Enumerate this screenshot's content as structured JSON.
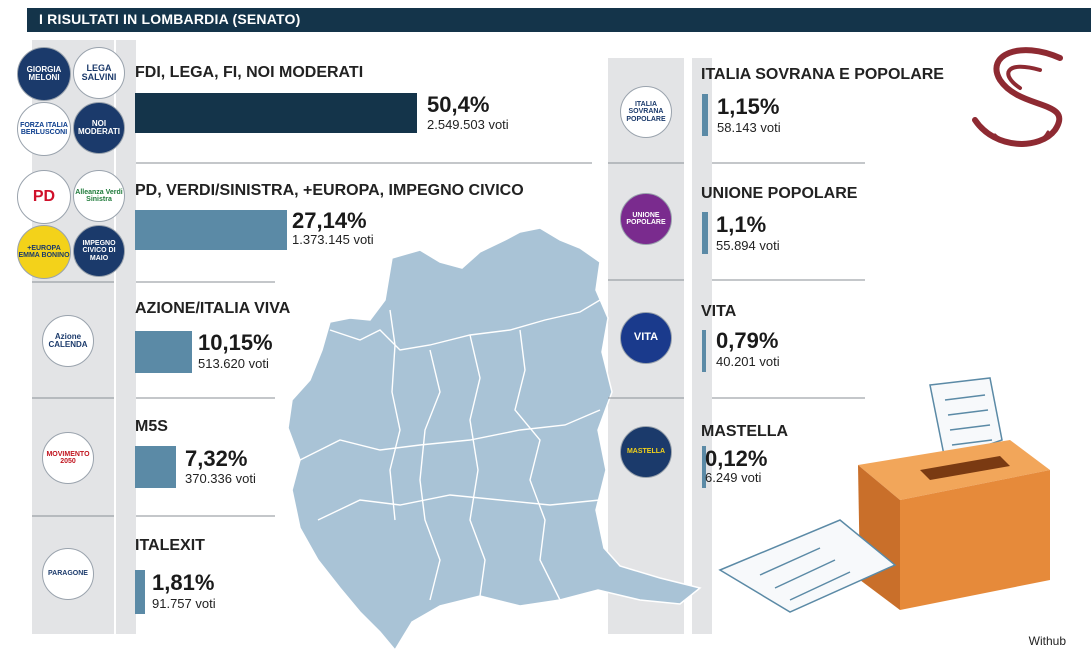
{
  "header": {
    "title": "I RISULTATI IN LOMBARDIA (SENATO)"
  },
  "colors": {
    "header": "#14344a",
    "bar_leader": "#14344a",
    "bar_other": "#5b8aa6",
    "map": "#a9c3d6",
    "emblem": "#8e2a32",
    "box": "#e68a3a"
  },
  "logos": {
    "fdi": "GIORGIA MELONI",
    "lega": "LEGA SALVINI",
    "fi": "FORZA ITALIA BERLUSCONI",
    "noi": "NOI MODERATI",
    "pd": "PD",
    "verdi": "Alleanza Verdi Sinistra",
    "europa": "+EUROPA EMMA BONINO",
    "impegno": "IMPEGNO CIVICO DI MAIO",
    "azione": "Azione CALENDA",
    "m5s": "MOVIMENTO 2050",
    "italexit": "PARAGONE",
    "isp": "ITALIA SOVRANA POPOLARE",
    "up": "UNIONE POPOLARE",
    "vita": "VITA",
    "mastella": "MASTELLA"
  },
  "credit": "Withub",
  "chart_data": {
    "type": "bar",
    "title": "I RISULTATI IN LOMBARDIA (SENATO)",
    "unit": "%",
    "series": [
      {
        "label": "FDI, LEGA, FI, NOI MODERATI",
        "value": 50.4,
        "value_text": "50,4%",
        "votes": "2.549.503 voti"
      },
      {
        "label": "PD, VERDI/SINISTRA, +EUROPA, IMPEGNO CIVICO",
        "value": 27.14,
        "value_text": "27,14%",
        "votes": "1.373.145 voti"
      },
      {
        "label": "AZIONE/ITALIA VIVA",
        "value": 10.15,
        "value_text": "10,15%",
        "votes": "513.620 voti"
      },
      {
        "label": "M5S",
        "value": 7.32,
        "value_text": "7,32%",
        "votes": "370.336 voti"
      },
      {
        "label": "ITALEXIT",
        "value": 1.81,
        "value_text": "1,81%",
        "votes": "91.757 voti"
      },
      {
        "label": "ITALIA SOVRANA E POPOLARE",
        "value": 1.15,
        "value_text": "1,15%",
        "votes": "58.143 voti"
      },
      {
        "label": "UNIONE POPOLARE",
        "value": 1.1,
        "value_text": "1,1%",
        "votes": "55.894 voti"
      },
      {
        "label": "VITA",
        "value": 0.79,
        "value_text": "0,79%",
        "votes": "40.201 voti"
      },
      {
        "label": "MASTELLA",
        "value": 0.12,
        "value_text": "0,12%",
        "votes": "6.249 voti"
      }
    ]
  }
}
